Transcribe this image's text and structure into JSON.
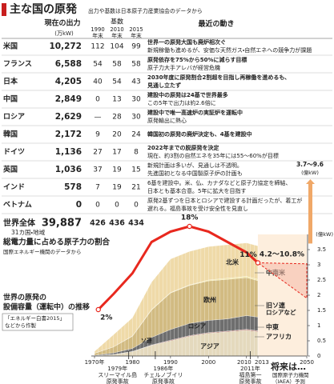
{
  "header": {
    "title": "主な国の原発",
    "subtitle": "出力や基数は日本原子力産業協会のデータから"
  },
  "table": {
    "columns": {
      "output": "現在の出力",
      "unit": "(万kW)",
      "count": "基数",
      "years": [
        [
          "1990",
          "年末"
        ],
        [
          "2010",
          "年末"
        ],
        [
          "2015",
          "年末"
        ]
      ],
      "moves": "最近の動き"
    },
    "rows": [
      {
        "country": "米国",
        "output": "10,272",
        "counts": [
          "112",
          "104",
          "99"
        ],
        "moves": [
          "世界一の原発大国も廃炉相次ぐ",
          "新規稼働も進めるが、安価な天然ガス・自然エネへの競争力が課題"
        ]
      },
      {
        "country": "フランス",
        "output": "6,588",
        "counts": [
          "54",
          "58",
          "58"
        ],
        "moves": [
          "原発依存を75%から50%に減らす目標",
          "原子力大手アレバが経営危機"
        ]
      },
      {
        "country": "日本",
        "output": "4,205",
        "counts": [
          "40",
          "54",
          "43"
        ],
        "moves": [
          "2030年度に原発割合2割超を目指し再稼働を進めるも、",
          "見通し立たず"
        ]
      },
      {
        "country": "中国",
        "output": "2,849",
        "counts": [
          "0",
          "13",
          "30"
        ],
        "moves": [
          "建設中の原発は24基で世界最多",
          "この5年で出力は約2.6倍に"
        ]
      },
      {
        "country": "ロシア",
        "output": "2,629",
        "counts": [
          "—",
          "28",
          "30"
        ],
        "moves": [
          "建設中で唯一高速炉の実証炉を運転中",
          "原発輸出に熱心"
        ]
      },
      {
        "country": "韓国",
        "output": "2,172",
        "counts": [
          "9",
          "20",
          "24"
        ],
        "moves": [
          "韓国初の原発の廃炉決定も、4基を建設中"
        ]
      },
      {
        "country": "ドイツ",
        "output": "1,136",
        "counts": [
          "27",
          "17",
          "8"
        ],
        "moves": [
          "2022年までの脱原発を決定",
          "現在、約3割の自然エネを35年には55～60%が目標"
        ]
      },
      {
        "country": "英国",
        "output": "1,036",
        "counts": [
          "37",
          "19",
          "15"
        ],
        "moves": [
          "新規計画は多いが、見通しは不透明。",
          "先進国初となる中国製原子炉の計画も"
        ]
      },
      {
        "country": "インド",
        "output": "578",
        "counts": [
          "7",
          "19",
          "21"
        ],
        "moves": [
          "6基を建設中。米、仏、カナダなどと原子力協定を締結、",
          "日本とも基本合意。5年に拡大を目指す"
        ]
      },
      {
        "country": "ベトナム",
        "output": "0",
        "counts": [
          "0",
          "0",
          "0"
        ],
        "moves": [
          "原発2基ずつを日本とロシアで建設する計画だったが、着工が",
          "遅れる。福島事故を受け安全性を見直し"
        ]
      }
    ],
    "total": {
      "label": "世界全体",
      "output": "39,887",
      "counts": [
        "426",
        "436",
        "434"
      ],
      "note": "31カ国・地域"
    }
  },
  "chart_data": {
    "type": "stacked_area",
    "title_lines": [
      "世界の原発の",
      "設備容量（運転中）の推移"
    ],
    "source_lines": [
      "「エネルギー白書2015」",
      "などから作製"
    ],
    "x": [
      1970,
      1975,
      1980,
      1985,
      1990,
      1995,
      2000,
      2005,
      2010,
      2013
    ],
    "xlim": [
      1970,
      2050
    ],
    "axis_break_after": 2013,
    "xticks": [
      {
        "value": 1970,
        "label": "1970年"
      },
      1980,
      1990,
      2000,
      2010,
      2013,
      2050
    ],
    "ylim": [
      0,
      4
    ],
    "yticks": [
      0,
      0.5,
      1,
      1.5,
      2,
      2.5,
      3,
      3.5
    ],
    "y_unit": "(億kW)",
    "y_axis_side": "right",
    "series": [
      {
        "name": "アジア",
        "color": "#e4d9bd",
        "values": [
          0.01,
          0.05,
          0.15,
          0.35,
          0.5,
          0.65,
          0.75,
          0.8,
          0.85,
          0.8
        ]
      },
      {
        "name": "アフリカ",
        "color": "#8b2a1a",
        "values": [
          0,
          0,
          0,
          0.01,
          0.02,
          0.02,
          0.02,
          0.02,
          0.02,
          0.02
        ]
      },
      {
        "name": "中東",
        "color": "#d9361f",
        "values": [
          0,
          0,
          0,
          0,
          0,
          0,
          0,
          0,
          0.01,
          0.01
        ]
      },
      {
        "name": "旧ソ連",
        "name_sub": "ロシアなど",
        "color": "#6e6e6e",
        "values": [
          0.01,
          0.05,
          0.1,
          0.25,
          0.35,
          0.4,
          0.4,
          0.4,
          0.45,
          0.45
        ]
      },
      {
        "name": "欧州",
        "color": "#d2bb82",
        "values": [
          0.07,
          0.2,
          0.4,
          0.9,
          1.2,
          1.25,
          1.3,
          1.3,
          1.25,
          1.2
        ]
      },
      {
        "name": "中南米",
        "color": "#f4e7a3",
        "values": [
          0,
          0,
          0.01,
          0.02,
          0.02,
          0.02,
          0.03,
          0.04,
          0.04,
          0.04
        ]
      },
      {
        "name": "北米",
        "color": "#efdaa8",
        "values": [
          0.06,
          0.4,
          0.6,
          0.9,
          1.1,
          1.1,
          1.1,
          1.1,
          1.1,
          1.1
        ]
      }
    ],
    "area_labels": [
      "ソ連",
      "ロシア"
    ],
    "share": {
      "title": "総電力量に占める原子力の割合",
      "source": "国際エネルギー機関のデータから",
      "color": "#e8281e",
      "x": [
        1971,
        1975,
        1980,
        1985,
        1990,
        1995,
        2000,
        2005,
        2010,
        2013
      ],
      "values": [
        2,
        5,
        9,
        15,
        17,
        18,
        17,
        15,
        13,
        11
      ],
      "value_labels": [
        "2%",
        null,
        null,
        null,
        null,
        "18%",
        null,
        null,
        null,
        "11%"
      ]
    },
    "forecast": {
      "x": 2050,
      "capacity": [
        3.7,
        9.6
      ],
      "capacity_label": "3.7～9.6",
      "capacity_unit": "(億kW)",
      "share": [
        4.2,
        10.8
      ],
      "share_label": "4.2～10.8%",
      "title": "将来は…",
      "source_lines": [
        "国際原子力機関",
        "（IAEA）予測"
      ]
    },
    "events": [
      {
        "x": {
          "value": 1979,
          "label": "1979年"
        },
        "lines": [
          "スリーマイル島",
          "原発事故"
        ]
      },
      {
        "x": {
          "value": 1986,
          "label": "1986年"
        },
        "lines": [
          "チェルノブイリ",
          "原発事故"
        ]
      },
      {
        "x": {
          "value": 2011,
          "label": "2011年"
        },
        "lines": [
          "福島第一",
          "原発事故"
        ]
      }
    ]
  }
}
